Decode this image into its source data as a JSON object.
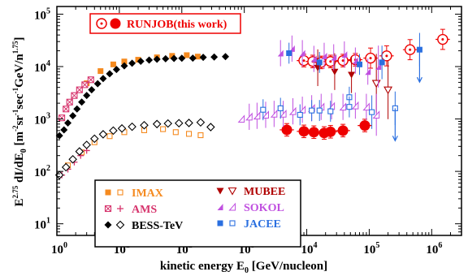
{
  "chart_data": {
    "type": "scatter",
    "x_scale": "log",
    "y_scale": "log",
    "xlim": [
      1,
      3000000
    ],
    "ylim": [
      6,
      140000
    ],
    "xlabel": {
      "main": "kinetic energy E",
      "sub": "0",
      "unit": " [GeV/nucleon]"
    },
    "ylabel": {
      "e": "E",
      "exp": "2.75",
      "mid": " dI/dE",
      "sub": "0",
      "units": " [m",
      "u1": "-2",
      "u2": "sr",
      "u3": "-1",
      "u4": "sec",
      "u5": "-1",
      "u6": "GeV/n",
      "u7": "1.75",
      "close": "]"
    },
    "x_ticks": [
      {
        "base": "10",
        "exp": "0",
        "value": 1
      },
      {
        "base": "10",
        "exp": "1",
        "value": 10
      },
      {
        "base": "10",
        "exp": "2",
        "value": 100
      },
      {
        "base": "10",
        "exp": "3",
        "value": 1000
      },
      {
        "base": "10",
        "exp": "4",
        "value": 10000
      },
      {
        "base": "10",
        "exp": "5",
        "value": 100000
      },
      {
        "base": "10",
        "exp": "6",
        "value": 1000000
      }
    ],
    "y_ticks": [
      {
        "base": "10",
        "exp": "1",
        "value": 10
      },
      {
        "base": "10",
        "exp": "2",
        "value": 100
      },
      {
        "base": "10",
        "exp": "3",
        "value": 1000
      },
      {
        "base": "10",
        "exp": "4",
        "value": 10000
      },
      {
        "base": "10",
        "exp": "5",
        "value": 100000
      }
    ],
    "legend_top": {
      "label": "RUNJOB(this work)",
      "color": "#ee0000",
      "placement": "top-left"
    },
    "legend_bottom": {
      "placement": "bottom-left",
      "entries": [
        {
          "label": "IMAX",
          "color": "#f58a1f",
          "marker": "square"
        },
        {
          "label": "AMS",
          "color": "#d6336c",
          "marker": "cross-square"
        },
        {
          "label": "BESS-TeV",
          "color": "#000000",
          "marker": "diamond"
        },
        {
          "label": "MUBEE",
          "color": "#b00000",
          "marker": "triangle-down"
        },
        {
          "label": "SOKOL",
          "color": "#c050e0",
          "marker": "triangle-slant"
        },
        {
          "label": "JACEE",
          "color": "#2a6fe0",
          "marker": "square"
        }
      ]
    },
    "series": [
      {
        "name": "RUNJOB(this work)",
        "component": "proton",
        "color": "#ee0000",
        "marker": "circle-open",
        "points": [
          [
            9000,
            13000
          ],
          [
            12500,
            12500
          ],
          [
            17000,
            12000
          ],
          [
            24000,
            12500
          ],
          [
            38000,
            13000
          ],
          [
            60000,
            13500
          ],
          [
            105000,
            14500
          ],
          [
            190000,
            16000
          ],
          [
            450000,
            21000
          ],
          [
            1500000,
            33000
          ]
        ]
      },
      {
        "name": "RUNJOB(this work)",
        "component": "helium",
        "color": "#ee0000",
        "marker": "circle-filled",
        "points": [
          [
            4800,
            620
          ],
          [
            9000,
            580
          ],
          [
            13000,
            560
          ],
          [
            19000,
            540
          ],
          [
            24000,
            570
          ],
          [
            38000,
            600
          ],
          [
            85000,
            750
          ]
        ]
      },
      {
        "name": "IMAX",
        "component": "proton",
        "color": "#f58a1f",
        "marker": "square-filled",
        "points": [
          [
            3,
            4800
          ],
          [
            5,
            8200
          ],
          [
            8,
            11000
          ],
          [
            12,
            12500
          ],
          [
            20,
            13500
          ],
          [
            40,
            15000
          ],
          [
            70,
            16000
          ],
          [
            120,
            16500
          ],
          [
            180,
            15500
          ]
        ]
      },
      {
        "name": "IMAX",
        "component": "helium",
        "color": "#f58a1f",
        "marker": "square-open",
        "points": [
          [
            1.5,
            130
          ],
          [
            2.5,
            230
          ],
          [
            4,
            360
          ],
          [
            7,
            470
          ],
          [
            12,
            560
          ],
          [
            25,
            610
          ],
          [
            50,
            640
          ],
          [
            80,
            560
          ],
          [
            130,
            520
          ],
          [
            200,
            490
          ]
        ]
      },
      {
        "name": "AMS",
        "component": "proton",
        "color": "#d6336c",
        "marker": "cross-square",
        "points": [
          [
            1.2,
            1050
          ],
          [
            1.4,
            1550
          ],
          [
            1.6,
            2100
          ],
          [
            1.9,
            2800
          ],
          [
            2.3,
            3600
          ],
          [
            2.8,
            4500
          ],
          [
            3.5,
            5600
          ]
        ]
      },
      {
        "name": "AMS",
        "component": "helium",
        "color": "#d6336c",
        "marker": "cross",
        "points": [
          [
            1.2,
            85
          ],
          [
            1.5,
            110
          ],
          [
            1.9,
            150
          ],
          [
            2.4,
            200
          ],
          [
            3,
            250
          ]
        ]
      },
      {
        "name": "BESS-TeV",
        "component": "proton",
        "color": "#000000",
        "marker": "diamond-filled",
        "points": [
          [
            1.1,
            480
          ],
          [
            1.3,
            620
          ],
          [
            1.5,
            840
          ],
          [
            1.8,
            1150
          ],
          [
            2.1,
            1550
          ],
          [
            2.5,
            2100
          ],
          [
            3,
            2800
          ],
          [
            3.6,
            3600
          ],
          [
            4.5,
            4700
          ],
          [
            5.5,
            5900
          ],
          [
            7,
            7300
          ],
          [
            9,
            8800
          ],
          [
            12,
            10300
          ],
          [
            16,
            11600
          ],
          [
            22,
            12600
          ],
          [
            30,
            13300
          ],
          [
            40,
            13800
          ],
          [
            55,
            14100
          ],
          [
            75,
            14300
          ],
          [
            100,
            14400
          ],
          [
            150,
            14500
          ],
          [
            220,
            15000
          ],
          [
            330,
            15200
          ],
          [
            500,
            15500
          ]
        ]
      },
      {
        "name": "BESS-TeV",
        "component": "helium",
        "color": "#000000",
        "marker": "diamond-open",
        "points": [
          [
            1.1,
            85
          ],
          [
            1.4,
            120
          ],
          [
            1.8,
            170
          ],
          [
            2.3,
            240
          ],
          [
            3,
            320
          ],
          [
            4,
            420
          ],
          [
            5.5,
            510
          ],
          [
            8,
            600
          ],
          [
            11,
            660
          ],
          [
            16,
            710
          ],
          [
            25,
            760
          ],
          [
            40,
            800
          ],
          [
            60,
            820
          ],
          [
            90,
            830
          ],
          [
            130,
            840
          ],
          [
            200,
            860
          ],
          [
            290,
            700
          ]
        ]
      },
      {
        "name": "MUBEE",
        "component": "proton",
        "color": "#b00000",
        "marker": "triangle-down-filled",
        "points": [
          [
            15000,
            9500
          ],
          [
            28000,
            8000
          ],
          [
            52000,
            7000
          ]
        ]
      },
      {
        "name": "MUBEE",
        "component": "helium",
        "color": "#b00000",
        "marker": "triangle-down-open",
        "points": [
          [
            130000,
            4800
          ],
          [
            200000,
            3600
          ]
        ]
      },
      {
        "name": "SOKOL",
        "component": "proton",
        "color": "#c050e0",
        "marker": "triangle-slant-filled",
        "points": [
          [
            3800,
            18000
          ],
          [
            5800,
            22000
          ],
          [
            8500,
            18000
          ],
          [
            13000,
            14000
          ],
          [
            19000,
            16000
          ],
          [
            27000,
            15000
          ],
          [
            40000,
            17000
          ],
          [
            60000,
            13000
          ],
          [
            95000,
            8000
          ],
          [
            140000,
            10000
          ]
        ]
      },
      {
        "name": "SOKOL",
        "component": "helium",
        "color": "#c050e0",
        "marker": "triangle-slant-open",
        "points": [
          [
            900,
            1000
          ],
          [
            1200,
            1100
          ],
          [
            1600,
            1150
          ],
          [
            2200,
            1200
          ],
          [
            3000,
            1250
          ],
          [
            4200,
            1250
          ],
          [
            6000,
            1400
          ],
          [
            8500,
            1500
          ],
          [
            12000,
            1600
          ],
          [
            17000,
            1700
          ],
          [
            25000,
            1750
          ],
          [
            38000,
            1700
          ],
          [
            60000,
            1800
          ],
          [
            90000,
            1700
          ],
          [
            130000,
            1200
          ]
        ]
      },
      {
        "name": "JACEE",
        "component": "proton",
        "color": "#2a6fe0",
        "marker": "square-filled",
        "points": [
          [
            5200,
            18000
          ],
          [
            16000,
            12000
          ],
          [
            70000,
            11000
          ],
          [
            160000,
            12000
          ],
          [
            640000,
            21000
          ]
        ]
      },
      {
        "name": "JACEE",
        "component": "helium",
        "color": "#2a6fe0",
        "marker": "square-open",
        "points": [
          [
            2000,
            1500
          ],
          [
            3800,
            1600
          ],
          [
            7800,
            1200
          ],
          [
            12000,
            1450
          ],
          [
            16000,
            1450
          ],
          [
            24000,
            1400
          ],
          [
            48000,
            2600
          ],
          [
            48000,
            1700
          ],
          [
            110000,
            1350
          ],
          [
            260000,
            1600
          ]
        ]
      }
    ],
    "upper_limits": [
      {
        "series": "JACEE",
        "x": 260000,
        "y": 1600,
        "color": "#2a6fe0"
      },
      {
        "series": "JACEE",
        "x": 640000,
        "y": 21000,
        "color": "#2a6fe0"
      }
    ],
    "grid": false
  }
}
